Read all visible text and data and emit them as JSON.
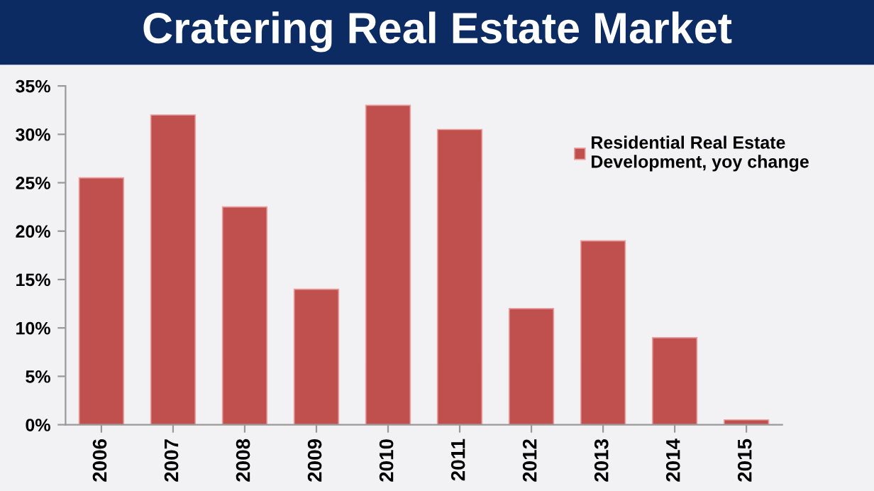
{
  "chart_data": {
    "type": "bar",
    "title": "Cratering Real Estate Market",
    "categories": [
      "2006",
      "2007",
      "2008",
      "2009",
      "2010",
      "2011",
      "2012",
      "2013",
      "2014",
      "2015"
    ],
    "series": [
      {
        "name": "Residential Real Estate Development, yoy change",
        "color": "#c0504d",
        "values": [
          25.5,
          32,
          22.5,
          14,
          33,
          30.5,
          12,
          19,
          9,
          0.5
        ]
      }
    ],
    "ylim": [
      0,
      35
    ],
    "yticks": [
      {
        "value": 0,
        "label": "0%"
      },
      {
        "value": 5,
        "label": "5%"
      },
      {
        "value": 10,
        "label": "10%"
      },
      {
        "value": 15,
        "label": "15%"
      },
      {
        "value": 20,
        "label": "20%"
      },
      {
        "value": 25,
        "label": "25%"
      },
      {
        "value": 30,
        "label": "30%"
      },
      {
        "value": 35,
        "label": "35%"
      }
    ],
    "legend": "top right",
    "grid": false
  }
}
